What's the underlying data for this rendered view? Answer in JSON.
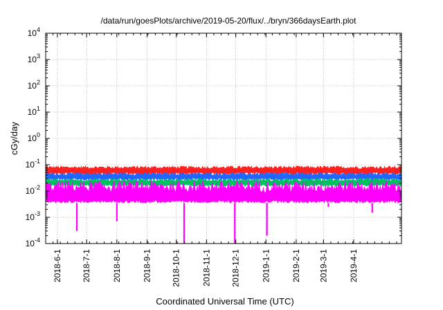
{
  "chart_data": {
    "type": "line",
    "title": "/data/run/goesPlots/archive/2019-05-20/flux/../bryn/366daysEarth.plot",
    "xlabel": "Coordinated Universal Time (UTC)",
    "ylabel": "cGy/day",
    "yscale": "log",
    "ylim": [
      0.0001,
      10000
    ],
    "xlim": [
      "2018-05-20",
      "2019-05-20"
    ],
    "y_ticks": [
      {
        "base": "10",
        "exp": "-4",
        "value": 0.0001
      },
      {
        "base": "10",
        "exp": "-3",
        "value": 0.001
      },
      {
        "base": "10",
        "exp": "-2",
        "value": 0.01
      },
      {
        "base": "10",
        "exp": "-1",
        "value": 0.1
      },
      {
        "base": "10",
        "exp": "0",
        "value": 1
      },
      {
        "base": "10",
        "exp": "1",
        "value": 10
      },
      {
        "base": "10",
        "exp": "2",
        "value": 100
      },
      {
        "base": "10",
        "exp": "3",
        "value": 1000
      },
      {
        "base": "10",
        "exp": "4",
        "value": 10000
      }
    ],
    "x_ticks": [
      {
        "label": "2018-6-1",
        "day": 12
      },
      {
        "label": "2018-7-1",
        "day": 42
      },
      {
        "label": "2018-8-1",
        "day": 73
      },
      {
        "label": "2018-9-1",
        "day": 104
      },
      {
        "label": "2018-10-1",
        "day": 134
      },
      {
        "label": "2018-11-1",
        "day": 165
      },
      {
        "label": "2018-12-1",
        "day": 195
      },
      {
        "label": "2019-1-1",
        "day": 226
      },
      {
        "label": "2019-2-1",
        "day": 257
      },
      {
        "label": "2019-3-1",
        "day": 285
      },
      {
        "label": "2019-4-1",
        "day": 316
      }
    ],
    "grid": true,
    "series": [
      {
        "name": "red",
        "color": "#ff2020",
        "approx_value": 0.06,
        "range": [
          0.04,
          0.09
        ]
      },
      {
        "name": "blue",
        "color": "#2266ff",
        "approx_value": 0.035,
        "range": [
          0.025,
          0.05
        ]
      },
      {
        "name": "green",
        "color": "#00c060",
        "approx_value": 0.02,
        "range": [
          0.015,
          0.03
        ]
      },
      {
        "name": "magenta",
        "color": "#ff00ff",
        "approx_value": 0.005,
        "range": [
          0.0035,
          0.025
        ],
        "dips": [
          {
            "day": 32,
            "value": 0.0003
          },
          {
            "day": 73,
            "value": 0.0007
          },
          {
            "day": 142,
            "value": 0.0001
          },
          {
            "day": 194,
            "value": 0.0001
          },
          {
            "day": 227,
            "value": 0.0002
          },
          {
            "day": 290,
            "value": 0.0025
          },
          {
            "day": 335,
            "value": 0.0015
          }
        ]
      }
    ]
  }
}
